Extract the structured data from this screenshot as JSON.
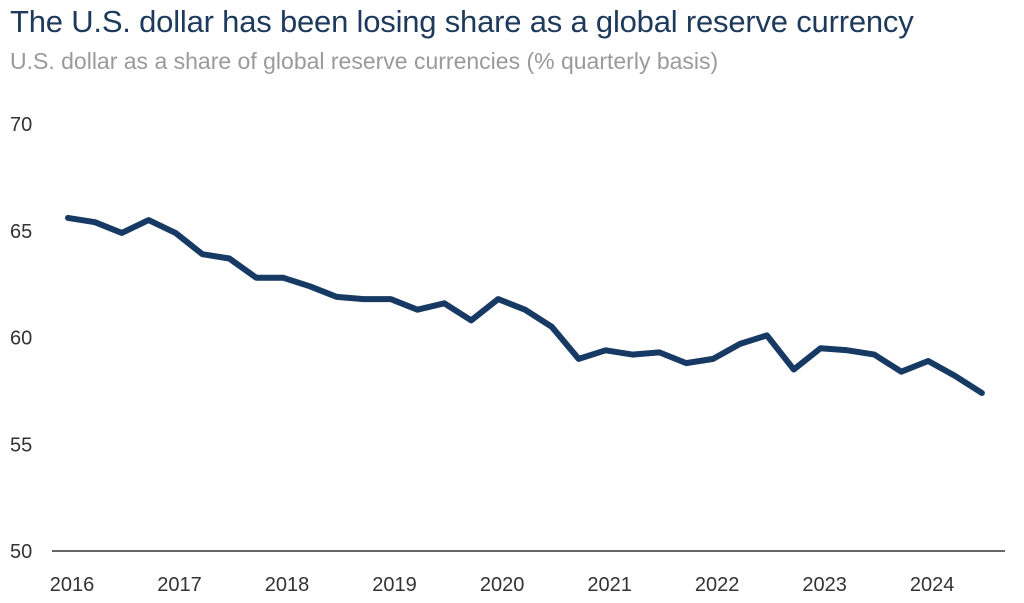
{
  "title": "The U.S. dollar has been losing share as a global reserve currency",
  "subtitle": "U.S. dollar as a share of global reserve currencies (% quarterly basis)",
  "chart_data": {
    "type": "line",
    "title": "The U.S. dollar has been losing share as a global reserve currency",
    "subtitle": "U.S. dollar as a share of global reserve currencies (% quarterly basis)",
    "xlabel": "",
    "ylabel": "",
    "ylim": [
      50,
      70
    ],
    "yticks": [
      50,
      55,
      60,
      65,
      70
    ],
    "xticks": [
      "2016",
      "2017",
      "2018",
      "2019",
      "2020",
      "2021",
      "2022",
      "2023",
      "2024"
    ],
    "grid": false,
    "line_color": "#173a64",
    "x": [
      "2016Q1",
      "2016Q2",
      "2016Q3",
      "2016Q4",
      "2017Q1",
      "2017Q2",
      "2017Q3",
      "2017Q4",
      "2018Q1",
      "2018Q2",
      "2018Q3",
      "2018Q4",
      "2019Q1",
      "2019Q2",
      "2019Q3",
      "2019Q4",
      "2020Q1",
      "2020Q2",
      "2020Q3",
      "2020Q4",
      "2021Q1",
      "2021Q2",
      "2021Q3",
      "2021Q4",
      "2022Q1",
      "2022Q2",
      "2022Q3",
      "2022Q4",
      "2023Q1",
      "2023Q2",
      "2023Q3",
      "2023Q4",
      "2024Q1",
      "2024Q2",
      "2024Q3"
    ],
    "series": [
      {
        "values": [
          65.6,
          65.4,
          64.9,
          65.5,
          64.9,
          63.9,
          63.7,
          62.8,
          62.8,
          62.4,
          61.9,
          61.8,
          61.8,
          61.3,
          61.6,
          60.8,
          61.8,
          61.3,
          60.5,
          59.0,
          59.4,
          59.2,
          59.3,
          58.8,
          59.0,
          59.7,
          60.1,
          58.5,
          59.5,
          59.4,
          59.2,
          58.4,
          58.9,
          58.2,
          57.4
        ]
      }
    ]
  }
}
